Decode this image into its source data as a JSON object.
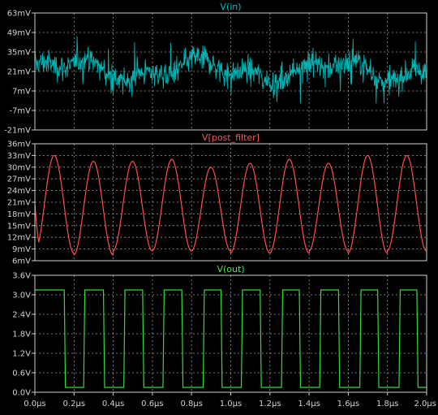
{
  "chart_data": [
    {
      "type": "line",
      "title": "V(in)",
      "title_color": "#00c0c0",
      "series": [
        {
          "name": "V(in)",
          "color": "#00b4b4"
        }
      ],
      "xlim": [
        0,
        2.0
      ],
      "ylim": [
        -21,
        63
      ],
      "yticks": [
        -21,
        -7,
        7,
        21,
        35,
        49,
        63
      ],
      "ytick_labels": [
        "-21mV",
        "-7mV",
        "7mV",
        "21mV",
        "35mV",
        "49mV",
        "63mV"
      ],
      "signal": {
        "form": "noise",
        "mean": 22,
        "typical_min": 3,
        "typical_max": 45,
        "peak_min": -2,
        "peak_max": 57
      }
    },
    {
      "type": "line",
      "title": "V[post_filter]",
      "title_color": "#ff5555",
      "series": [
        {
          "name": "V[post_filter]",
          "color": "#ff4b4b"
        }
      ],
      "xlim": [
        0,
        2.0
      ],
      "ylim": [
        6,
        36
      ],
      "yticks": [
        6,
        9,
        12,
        15,
        18,
        21,
        24,
        27,
        30,
        33,
        36
      ],
      "ytick_labels": [
        "6mV",
        "9mV",
        "12mV",
        "15mV",
        "18mV",
        "21mV",
        "24mV",
        "27mV",
        "30mV",
        "33mV",
        "36mV"
      ],
      "signal": {
        "form": "sine",
        "start": 20.5,
        "period_us": 0.2,
        "peaks": [
          33,
          31.5,
          31.5,
          32,
          30,
          31,
          32,
          31,
          33,
          33
        ],
        "troughs": [
          8,
          7.5,
          8.5,
          8.5,
          8.5,
          8,
          8,
          8.5,
          8,
          8.5
        ]
      }
    },
    {
      "type": "line",
      "title": "V(out)",
      "title_color": "#55e055",
      "series": [
        {
          "name": "V(out)",
          "color": "#33dd33"
        }
      ],
      "xlim": [
        0,
        2.0
      ],
      "ylim": [
        0,
        3.6
      ],
      "yticks": [
        0,
        0.6,
        1.2,
        1.8,
        2.4,
        3.0,
        3.6
      ],
      "ytick_labels": [
        "0.0V",
        "0.6V",
        "1.2V",
        "1.8V",
        "2.4V",
        "3.0V",
        "3.6V"
      ],
      "signal": {
        "form": "square",
        "high": 3.15,
        "low": 0.15,
        "high_intervals": [
          [
            0,
            0.15
          ],
          [
            0.255,
            0.35
          ],
          [
            0.46,
            0.55
          ],
          [
            0.66,
            0.75
          ],
          [
            0.865,
            0.95
          ],
          [
            1.06,
            1.15
          ],
          [
            1.265,
            1.35
          ],
          [
            1.46,
            1.55
          ],
          [
            1.665,
            1.75
          ],
          [
            1.865,
            1.95
          ]
        ]
      }
    }
  ],
  "x_axis": {
    "ticks": [
      0,
      0.2,
      0.4,
      0.6,
      0.8,
      1.0,
      1.2,
      1.4,
      1.6,
      1.8,
      2.0
    ],
    "tick_labels": [
      "0.0µs",
      "0.2µs",
      "0.4µs",
      "0.6µs",
      "0.8µs",
      "1.0µs",
      "1.2µs",
      "1.4µs",
      "1.6µs",
      "1.8µs",
      "2.0µs"
    ]
  },
  "style": {
    "background": "#000000",
    "frame": "#cfcfcf",
    "grid": "#9a9a9a",
    "tick_text": "#d0d0d0"
  }
}
